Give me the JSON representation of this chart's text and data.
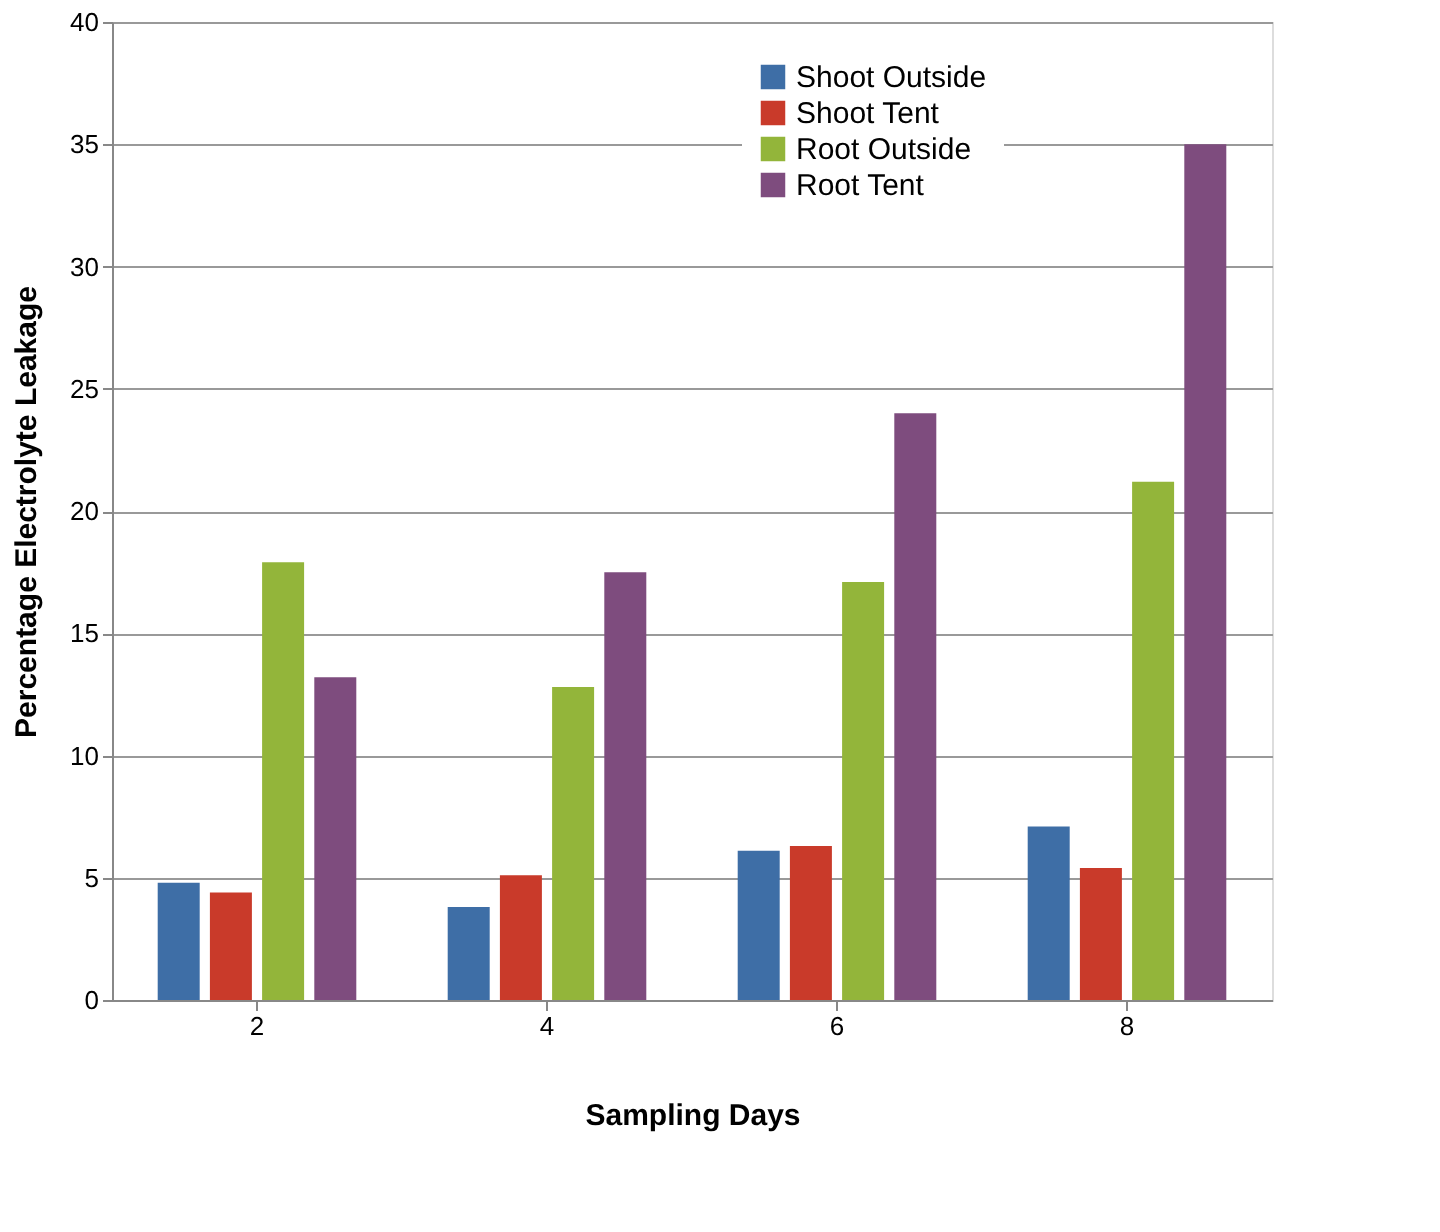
{
  "chart_data": {
    "type": "bar",
    "xlabel": "Sampling Days",
    "ylabel": "Percentage Electrolyte Leakage",
    "categories": [
      "2",
      "4",
      "6",
      "8"
    ],
    "series": [
      {
        "name": "Shoot Outside",
        "color": "#3e6ea6",
        "values": [
          4.8,
          3.8,
          6.1,
          7.1
        ]
      },
      {
        "name": "Shoot Tent",
        "color": "#c93a2a",
        "values": [
          4.4,
          5.1,
          6.3,
          5.4
        ]
      },
      {
        "name": "Root Outside",
        "color": "#93b53a",
        "values": [
          17.9,
          12.8,
          17.1,
          21.2
        ]
      },
      {
        "name": "Root Tent",
        "color": "#7e4c7e",
        "values": [
          13.2,
          17.5,
          24.0,
          35.0
        ]
      }
    ],
    "ylim": [
      0,
      40
    ],
    "yticks": [
      0,
      5,
      10,
      15,
      20,
      25,
      30,
      35,
      40
    ],
    "grid": "y",
    "legend": "top right"
  }
}
